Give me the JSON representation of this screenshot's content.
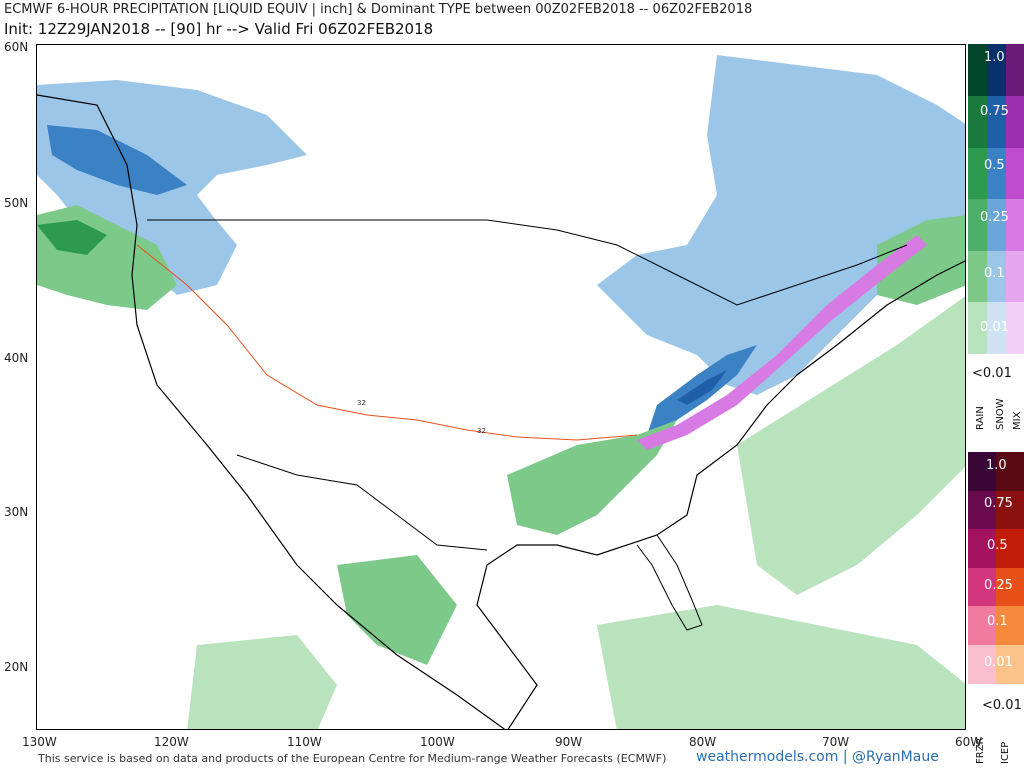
{
  "header": {
    "title": "ECMWF 6-HOUR PRECIPITATION [LIQUID EQUIV | inch] & Dominant TYPE between 00Z02FEB2018 -- 06Z02FEB2018",
    "subtitle": "Init: 12Z29JAN2018 -- [90] hr --> Valid Fri 06Z02FEB2018"
  },
  "axes": {
    "lat_labels": [
      "60N",
      "50N",
      "40N",
      "30N",
      "20N"
    ],
    "lon_labels": [
      "130W",
      "120W",
      "110W",
      "100W",
      "90W",
      "80W",
      "70W",
      "60W"
    ]
  },
  "legend": {
    "upper_values": [
      "1.0",
      "0.75",
      "0.5",
      "0.25",
      "0.1",
      "0.01"
    ],
    "upper_below": "<0.01",
    "upper_types": [
      "RAIN",
      "SNOW",
      "MIX"
    ],
    "lower_values": [
      "1.0",
      "0.75",
      "0.5",
      "0.25",
      "0.1",
      "0.01"
    ],
    "lower_below": "<0.01",
    "lower_types": [
      "FRZR",
      "ICEP"
    ],
    "colors": {
      "rain": [
        "#00442a",
        "#1a7a3e",
        "#2e9a4f",
        "#4cb06a",
        "#7cc98a",
        "#b8e3bd"
      ],
      "snow": [
        "#08306b",
        "#1f5ea8",
        "#3b82c4",
        "#6aa7d8",
        "#9cc6e8",
        "#cfe3f4"
      ],
      "mix": [
        "#6a1b7a",
        "#9b2fae",
        "#c04cd0",
        "#d77ae4",
        "#e6a6ef",
        "#f2d0f7"
      ],
      "frzr": [
        "#3a0636",
        "#6a0a4e",
        "#a3125f",
        "#d2367d",
        "#f07aa0",
        "#f9bfce"
      ],
      "icep": [
        "#5a0a14",
        "#8b1010",
        "#c21d0a",
        "#e8501a",
        "#f58a3c",
        "#fbc38a"
      ]
    }
  },
  "contour_label": "32",
  "footer": {
    "attribution": "This service is based on data and products of the European Centre for Medium-range Weather Forecasts (ECMWF)",
    "brand": "weathermodels.com | @RyanMaue"
  }
}
